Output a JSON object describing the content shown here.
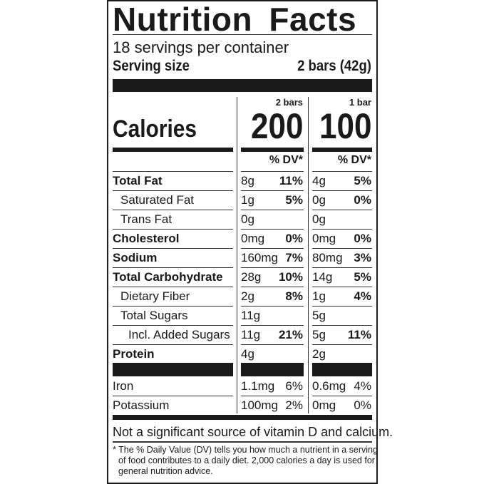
{
  "title": "Nutrition Facts",
  "servings_per_container": "18 servings per container",
  "serving_size_label": "Serving size",
  "serving_size_value": "2 bars (42g)",
  "columns": [
    {
      "header": "2 bars",
      "calories": "200",
      "dv_header": "% DV*"
    },
    {
      "header": "1 bar",
      "calories": "100",
      "dv_header": "% DV*"
    }
  ],
  "calories_label": "Calories",
  "nutrients": [
    {
      "name": "Total Fat",
      "bold": true,
      "indent": 0,
      "amt1": "8g",
      "dv1": "11%",
      "amt2": "4g",
      "dv2": "5%"
    },
    {
      "name": "Saturated Fat",
      "bold": false,
      "indent": 1,
      "amt1": "1g",
      "dv1": "5%",
      "amt2": "0g",
      "dv2": "0%"
    },
    {
      "name": "Trans Fat",
      "bold": false,
      "indent": 1,
      "amt1": "0g",
      "dv1": "",
      "amt2": "0g",
      "dv2": ""
    },
    {
      "name": "Cholesterol",
      "bold": true,
      "indent": 0,
      "amt1": "0mg",
      "dv1": "0%",
      "amt2": "0mg",
      "dv2": "0%"
    },
    {
      "name": "Sodium",
      "bold": true,
      "indent": 0,
      "amt1": "160mg",
      "dv1": "7%",
      "amt2": "80mg",
      "dv2": "3%"
    },
    {
      "name": "Total Carbohydrate",
      "bold": true,
      "indent": 0,
      "amt1": "28g",
      "dv1": "10%",
      "amt2": "14g",
      "dv2": "5%"
    },
    {
      "name": "Dietary Fiber",
      "bold": false,
      "indent": 1,
      "amt1": "2g",
      "dv1": "8%",
      "amt2": "1g",
      "dv2": "4%"
    },
    {
      "name": "Total Sugars",
      "bold": false,
      "indent": 1,
      "amt1": "11g",
      "dv1": "",
      "amt2": "5g",
      "dv2": ""
    },
    {
      "name": "Incl. Added Sugars",
      "bold": false,
      "indent": 2,
      "amt1": "11g",
      "dv1": "21%",
      "amt2": "5g",
      "dv2": "11%"
    },
    {
      "name": "Protein",
      "bold": true,
      "indent": 0,
      "amt1": "4g",
      "dv1": "",
      "amt2": "2g",
      "dv2": ""
    }
  ],
  "micronutrients": [
    {
      "name": "Iron",
      "amt1": "1.1mg",
      "dv1": "6%",
      "amt2": "0.6mg",
      "dv2": "4%"
    },
    {
      "name": "Potassium",
      "amt1": "100mg",
      "dv1": "2%",
      "amt2": "0mg",
      "dv2": "0%"
    }
  ],
  "not_significant": "Not a significant source of vitamin D and calcium.",
  "footnote": [
    "* The % Daily Value (DV) tells you how much a nutrient in a serving",
    "of food contributes to a daily diet. 2,000 calories a day is used for",
    "general nutrition advice."
  ]
}
